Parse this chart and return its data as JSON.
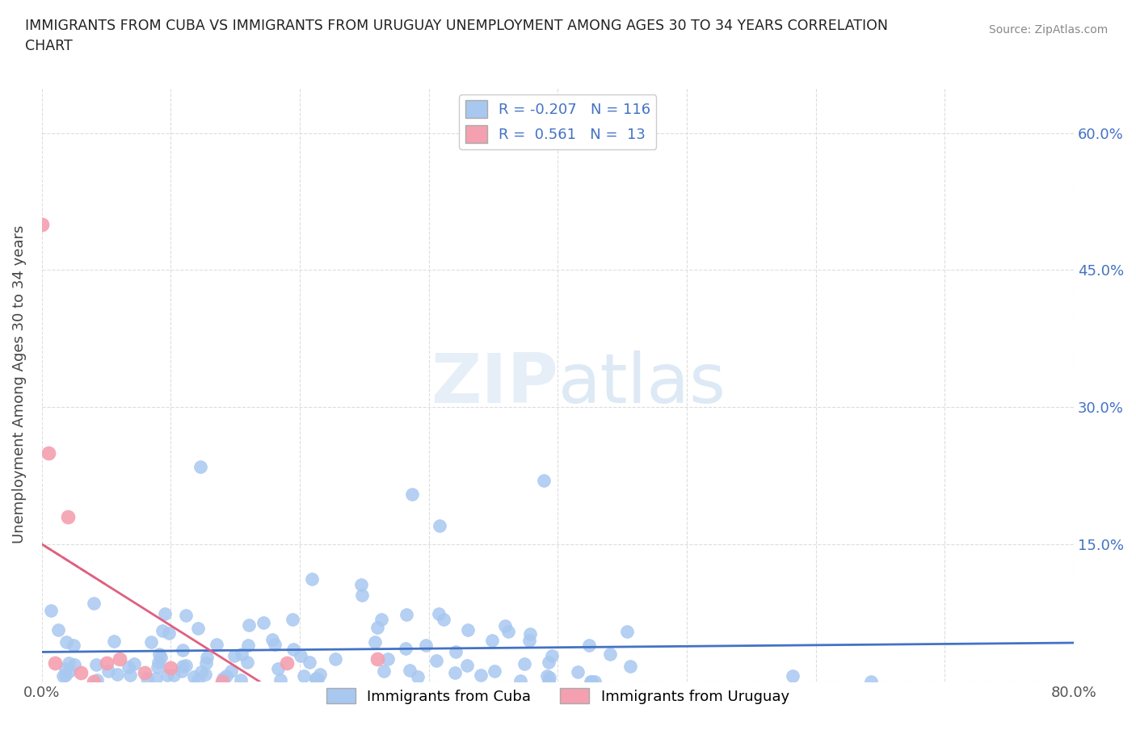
{
  "title_line1": "IMMIGRANTS FROM CUBA VS IMMIGRANTS FROM URUGUAY UNEMPLOYMENT AMONG AGES 30 TO 34 YEARS CORRELATION",
  "title_line2": "CHART",
  "source": "Source: ZipAtlas.com",
  "ylabel": "Unemployment Among Ages 30 to 34 years",
  "xlim": [
    0.0,
    0.8
  ],
  "ylim": [
    0.0,
    0.65
  ],
  "cuba_color": "#a8c8f0",
  "uruguay_color": "#f4a0b0",
  "cuba_line_color": "#4472c4",
  "uruguay_line_color": "#e06080",
  "cuba_R": -0.207,
  "cuba_N": 116,
  "uruguay_R": 0.561,
  "uruguay_N": 13,
  "watermark_zip": "ZIP",
  "watermark_atlas": "atlas",
  "background_color": "#ffffff",
  "grid_color": "#dddddd",
  "tick_label_color": "#4472c4",
  "title_color": "#222222",
  "source_color": "#888888",
  "ylabel_color": "#444444"
}
